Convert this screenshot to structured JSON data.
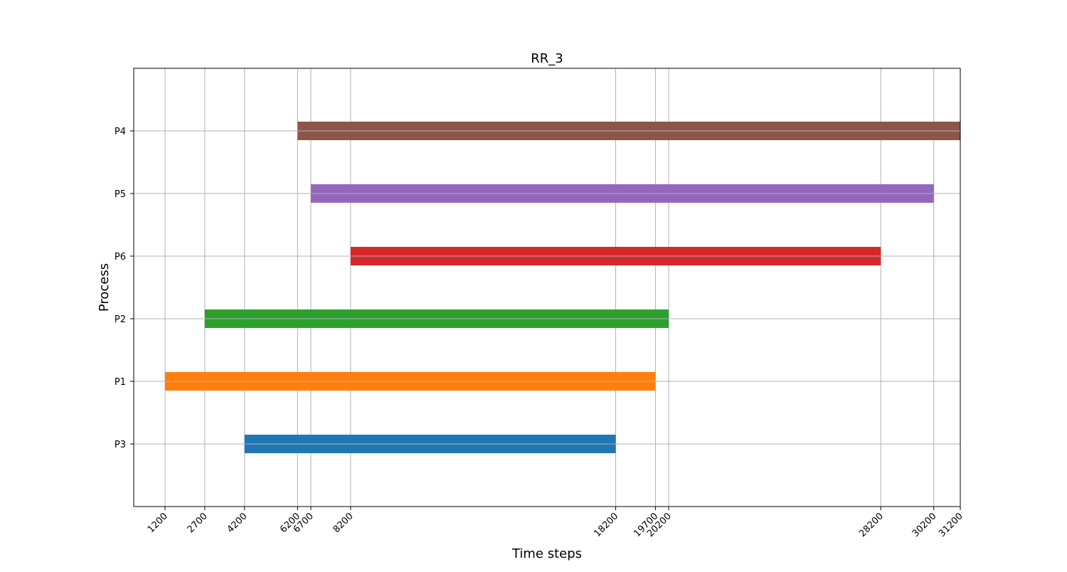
{
  "chart_data": {
    "type": "bar",
    "orientation": "horizontal",
    "title": "RR_3",
    "xlabel": "Time steps",
    "ylabel": "Process",
    "xlim": [
      0,
      31200
    ],
    "grid": true,
    "xticks": [
      1200,
      2700,
      4200,
      6200,
      6700,
      8200,
      18200,
      19700,
      20200,
      28200,
      30200,
      31200
    ],
    "categories": [
      "P3",
      "P1",
      "P2",
      "P6",
      "P5",
      "P4"
    ],
    "bars": [
      {
        "process": "P3",
        "start": 4200,
        "end": 18200,
        "color": "#1f77b4"
      },
      {
        "process": "P1",
        "start": 1200,
        "end": 19700,
        "color": "#ff7f0e"
      },
      {
        "process": "P2",
        "start": 2700,
        "end": 20200,
        "color": "#2ca02c"
      },
      {
        "process": "P6",
        "start": 8200,
        "end": 28200,
        "color": "#d62728"
      },
      {
        "process": "P5",
        "start": 6700,
        "end": 30200,
        "color": "#9467bd"
      },
      {
        "process": "P4",
        "start": 6200,
        "end": 31200,
        "color": "#8c564b"
      }
    ]
  }
}
